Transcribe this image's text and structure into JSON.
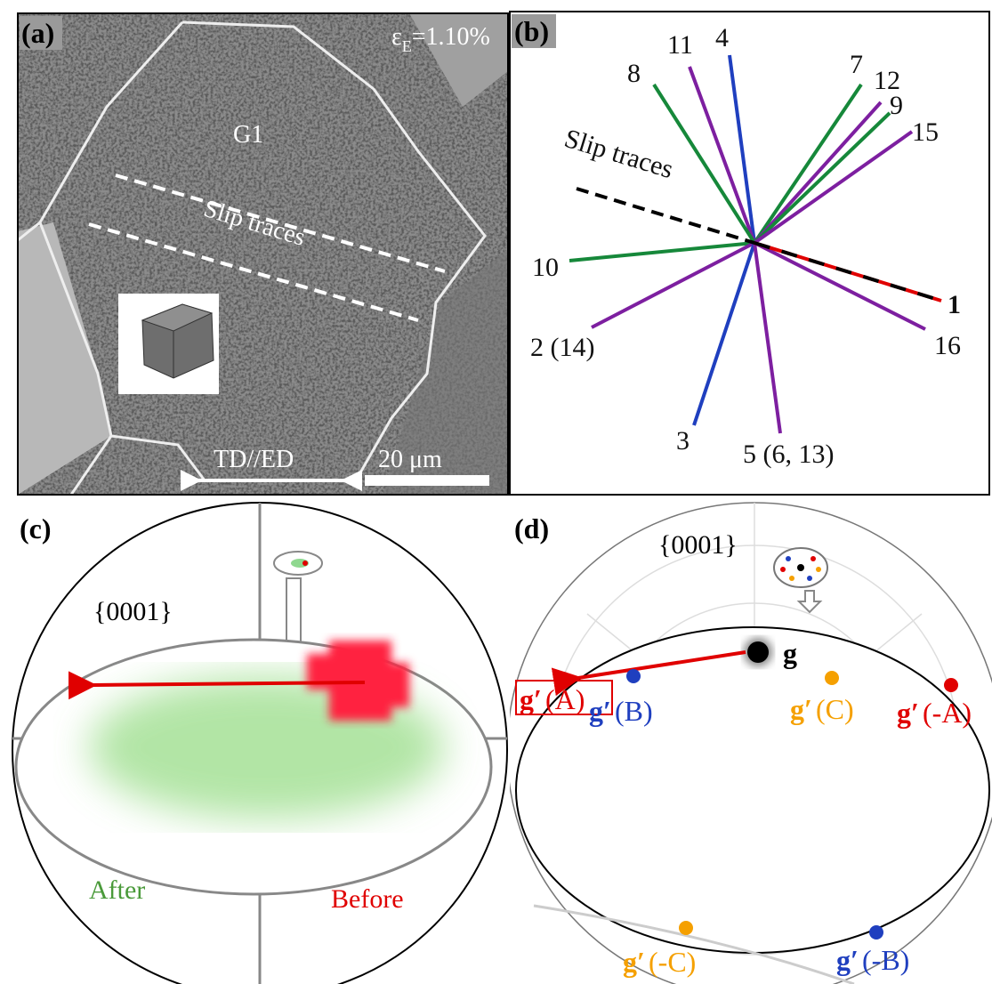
{
  "panels": [
    {
      "label": "(a)",
      "strain": {
        "symbol": "ε",
        "subscript": "E",
        "value": "=1.10%"
      },
      "grain": "G1",
      "slip_traces": "Slip traces",
      "direction": "TD//ED",
      "scale_bar": "20 μm"
    },
    {
      "label": "(b)",
      "slip_traces": "Slip traces",
      "systems": [
        "4",
        "11",
        "8",
        "7",
        "12",
        "9",
        "15",
        "10",
        "2 (14)",
        "3",
        "5 (6, 13)",
        "16",
        "1"
      ]
    },
    {
      "label": "(c)",
      "plane": "{0001}",
      "after": "After",
      "before": "Before"
    },
    {
      "label": "(d)",
      "plane": "{0001}",
      "g": "g",
      "prime_symbol": "g′",
      "g_primes": [
        "(B)",
        "(C)",
        "(A)",
        "(-A)",
        "(-C)",
        "(-B)"
      ]
    }
  ]
}
